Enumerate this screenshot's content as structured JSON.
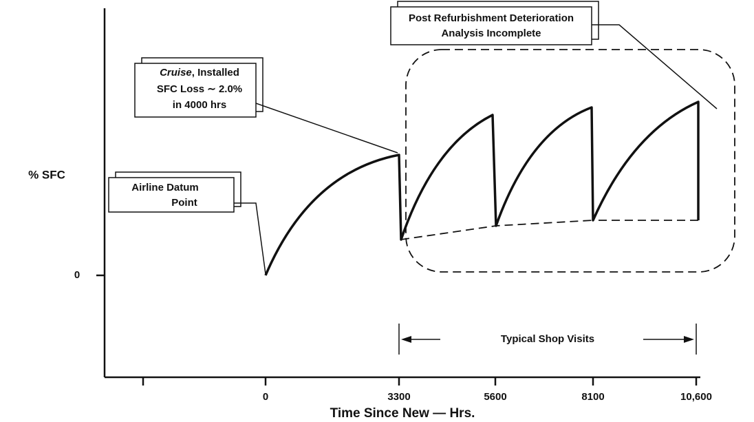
{
  "y_axis": {
    "title": "% SFC",
    "ticks": [
      "0"
    ]
  },
  "x_axis": {
    "title": "Time Since New — Hrs.",
    "ticks": [
      "0",
      "3300",
      "5600",
      "8100",
      "10,600"
    ]
  },
  "annotations": {
    "post_refurbishment": [
      "Post Refurbishment Deterioration",
      "Analysis Incomplete"
    ],
    "cruise": {
      "first_line": {
        "italic": "Cruise",
        "rest": ", Installed"
      },
      "lines": [
        "SFC Loss ∼ 2.0%",
        "in 4000 hrs"
      ]
    },
    "datum": [
      "Airline Datum",
      "Point"
    ],
    "shop_visits": "Typical Shop Visits"
  }
}
